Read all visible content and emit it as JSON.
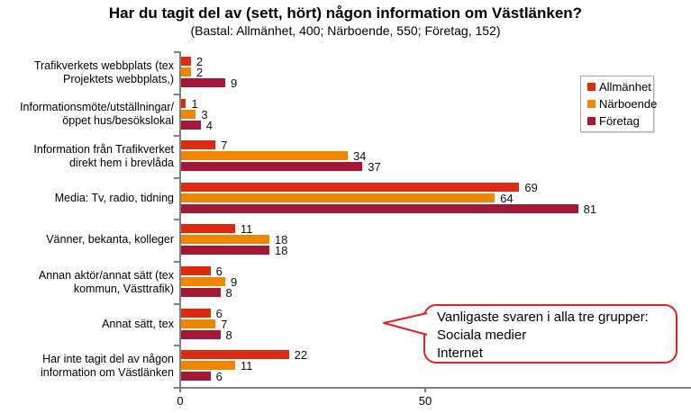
{
  "title": "Har du tagit del av (sett, hört) någon information om Västlänken?",
  "subtitle": "(Bastal: Allmänhet, 400; Närboende, 550; Företag, 152)",
  "legend": {
    "items": [
      {
        "label": "Allmänhet",
        "color": "#dc2b10"
      },
      {
        "label": "Närboende",
        "color": "#ee8600"
      },
      {
        "label": "Företag",
        "color": "#a41737"
      }
    ]
  },
  "callout": {
    "border_color": "#e02222",
    "lines": [
      "Vanligaste svaren i alla tre grupper:",
      "Sociala medier",
      "Internet"
    ]
  },
  "x_axis": {
    "ticks": [
      {
        "label": "0",
        "value": 0
      },
      {
        "label": "50",
        "value": 50
      }
    ]
  },
  "chart_data": {
    "type": "bar",
    "orientation": "horizontal",
    "title": "Har du tagit del av (sett, hört) någon information om Västlänken?",
    "subtitle": "(Bastal: Allmänhet, 400; Närboende, 550; Företag, 152)",
    "xlim": [
      0,
      104
    ],
    "grid": false,
    "legend_position": "top-right",
    "categories": [
      "Trafikverkets webbplats (tex\nProjektets webbplats,)",
      "Informationsmöte/utställningar/\nöppet hus/besökslokal",
      "Information från Trafikverket\ndirekt hem i brevlåda",
      "Media: Tv, radio, tidning",
      "Vänner, bekanta, kolleger",
      "Annan aktör/annat sätt (tex\nkommun, Västtrafik)",
      "Annat sätt, tex",
      "Har inte tagit del av någon\ninformation om Västlänken"
    ],
    "series": [
      {
        "name": "Allmänhet",
        "color": "#dc2b10",
        "values": [
          2,
          1,
          7,
          69,
          11,
          6,
          6,
          22
        ]
      },
      {
        "name": "Närboende",
        "color": "#ee8600",
        "values": [
          2,
          3,
          34,
          64,
          18,
          9,
          7,
          11
        ]
      },
      {
        "name": "Företag",
        "color": "#a41737",
        "values": [
          9,
          4,
          37,
          81,
          18,
          8,
          8,
          6
        ]
      }
    ]
  }
}
